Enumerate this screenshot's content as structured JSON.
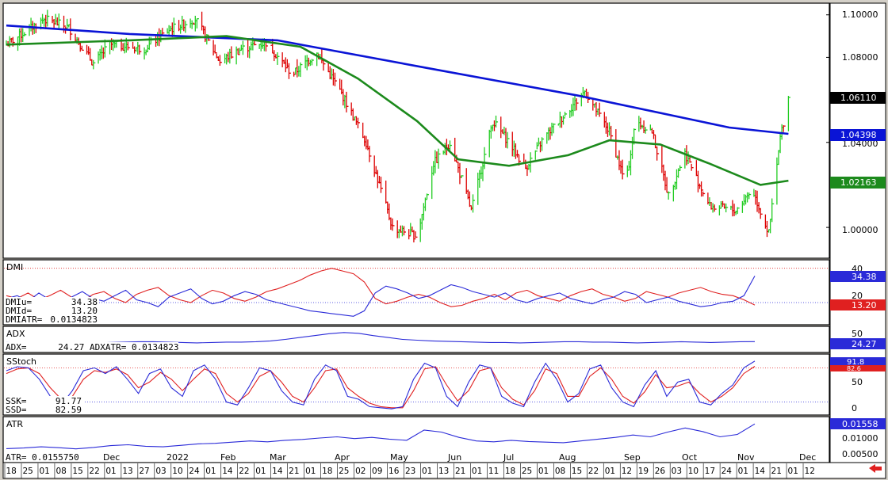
{
  "colors": {
    "up": "#22cc22",
    "down": "#dd0000",
    "ma_long": "#0a14d6",
    "ma_short": "#1c8a1c",
    "di_plus": "#2a2ad8",
    "di_minus": "#e02020",
    "k_line": "#2a2ad8",
    "d_line": "#e02020",
    "adx": "#2a2ad8",
    "atr": "#2a2ad8",
    "panel_bg": "#ffffff",
    "frame": "#000000"
  },
  "price_panel": {
    "y_ticks": [
      "1.10000",
      "1.08000",
      "1.04000",
      "1.00000"
    ],
    "last_label": "1.06110",
    "ma_long_label": "1.04398",
    "ma_short_label": "1.02163"
  },
  "dmi_panel": {
    "title": "DMI",
    "y_ticks": [
      "40",
      "20"
    ],
    "plus_label": "34.38",
    "minus_label": "13.20",
    "readout": [
      {
        "k": "DMIu=",
        "v": "34.38"
      },
      {
        "k": "DMId=",
        "v": "13.20"
      },
      {
        "k": "DMIATR=",
        "v": "0.0134823"
      }
    ]
  },
  "adx_panel": {
    "title": "ADX",
    "y_ticks": [
      "50"
    ],
    "value_label": "24.27",
    "readout": "ADX=      24.27 ADXATR= 0.0134823"
  },
  "stoch_panel": {
    "title": "SStoch",
    "y_ticks": [
      "50",
      "0"
    ],
    "k_label": "91.8",
    "d_label": "82.6",
    "readout": [
      {
        "k": "SSK=",
        "v": "91.77"
      },
      {
        "k": "SSD=",
        "v": "82.59"
      }
    ]
  },
  "atr_panel": {
    "title": "ATR",
    "y_ticks": [
      "0.01000",
      "0.00500"
    ],
    "value_label": "0.01558",
    "readout": "ATR= 0.0155750"
  },
  "x_axis": {
    "months": [
      "Dec",
      "2022",
      "Feb",
      "Mar",
      "Apr",
      "May",
      "Jun",
      "Jul",
      "Aug",
      "Sep",
      "Oct",
      "Nov",
      "Dec"
    ],
    "days": [
      "18",
      "25",
      "01",
      "08",
      "15",
      "22",
      "01",
      "13",
      "27",
      "03",
      "10",
      "24",
      "01",
      "14",
      "22",
      "01",
      "14",
      "21",
      "01",
      "18",
      "25",
      "02",
      "09",
      "16",
      "23",
      "01",
      "13",
      "21",
      "01",
      "11",
      "18",
      "25",
      "01",
      "08",
      "15",
      "22",
      "01",
      "12",
      "19",
      "26",
      "03",
      "10",
      "17",
      "24",
      "01",
      "14",
      "21",
      "01",
      "12"
    ]
  },
  "chart_data": {
    "type": "line",
    "instrument_panels": [
      "price",
      "DMI",
      "ADX",
      "SStoch",
      "ATR"
    ],
    "x_start": "2021-10-18",
    "x_end": "2022-12-12",
    "price": {
      "ylim": [
        0.987,
        1.104
      ],
      "close_path_points": [
        [
          "2021-10-18",
          1.086
        ],
        [
          "2021-11-10",
          1.098
        ],
        [
          "2021-11-25",
          1.094
        ],
        [
          "2021-12-10",
          1.077
        ],
        [
          "2021-12-20",
          1.086
        ],
        [
          "2022-01-10",
          1.084
        ],
        [
          "2022-01-25",
          1.093
        ],
        [
          "2022-02-10",
          1.098
        ],
        [
          "2022-02-25",
          1.078
        ],
        [
          "2022-03-10",
          1.084
        ],
        [
          "2022-03-25",
          1.087
        ],
        [
          "2022-04-10",
          1.072
        ],
        [
          "2022-04-25",
          1.082
        ],
        [
          "2022-05-10",
          1.063
        ],
        [
          "2022-05-25",
          1.04
        ],
        [
          "2022-06-10",
          1.0
        ],
        [
          "2022-06-25",
          0.996
        ],
        [
          "2022-07-05",
          1.03
        ],
        [
          "2022-07-15",
          1.04
        ],
        [
          "2022-07-28",
          1.008
        ],
        [
          "2022-08-10",
          1.05
        ],
        [
          "2022-08-20",
          1.04
        ],
        [
          "2022-08-30",
          1.028
        ],
        [
          "2022-09-10",
          1.042
        ],
        [
          "2022-09-25",
          1.055
        ],
        [
          "2022-10-05",
          1.064
        ],
        [
          "2022-10-20",
          1.045
        ],
        [
          "2022-10-30",
          1.02
        ],
        [
          "2022-11-05",
          1.05
        ],
        [
          "2022-11-15",
          1.045
        ],
        [
          "2022-11-25",
          1.015
        ],
        [
          "2022-12-05",
          1.035
        ],
        [
          "2022-12-20",
          1.01
        ],
        [
          "2023-01-05",
          1.008
        ],
        [
          "2023-01-15",
          1.018
        ],
        [
          "2023-01-25",
          0.997
        ],
        [
          "2023-02-01",
          1.042
        ],
        [
          "2023-02-06",
          1.061
        ]
      ],
      "ma_long_points": [
        [
          "2021-10-18",
          1.095
        ],
        [
          "2022-01-01",
          1.091
        ],
        [
          "2022-04-01",
          1.088
        ],
        [
          "2022-07-01",
          1.075
        ],
        [
          "2022-10-01",
          1.062
        ],
        [
          "2023-01-01",
          1.047
        ],
        [
          "2023-02-06",
          1.044
        ]
      ],
      "ma_short_points": [
        [
          "2021-10-18",
          1.086
        ],
        [
          "2022-01-01",
          1.088
        ],
        [
          "2022-03-01",
          1.09
        ],
        [
          "2022-04-15",
          1.085
        ],
        [
          "2022-05-20",
          1.07
        ],
        [
          "2022-06-25",
          1.05
        ],
        [
          "2022-07-20",
          1.032
        ],
        [
          "2022-08-20",
          1.029
        ],
        [
          "2022-09-25",
          1.034
        ],
        [
          "2022-10-20",
          1.041
        ],
        [
          "2022-11-20",
          1.039
        ],
        [
          "2022-12-20",
          1.03
        ],
        [
          "2023-01-20",
          1.02
        ],
        [
          "2023-02-06",
          1.022
        ]
      ],
      "last": 1.0611,
      "ma_long_last": 1.04398,
      "ma_short_last": 1.02163
    },
    "dmi": {
      "ylim": [
        0,
        45
      ],
      "plus_series": [
        18,
        20,
        16,
        22,
        17,
        14,
        19,
        23,
        18,
        16,
        20,
        24,
        17,
        15,
        12,
        19,
        22,
        25,
        18,
        14,
        16,
        20,
        23,
        21,
        17,
        15,
        13,
        11,
        9,
        8,
        7,
        6,
        5,
        9,
        22,
        27,
        25,
        22,
        18,
        20,
        24,
        28,
        26,
        23,
        21,
        19,
        22,
        17,
        15,
        18,
        20,
        22,
        18,
        16,
        14,
        17,
        19,
        23,
        21,
        15,
        17,
        19,
        16,
        14,
        12,
        13,
        15,
        16,
        20,
        34.38
      ],
      "minus_series": [
        20,
        18,
        22,
        17,
        20,
        24,
        19,
        16,
        21,
        23,
        18,
        15,
        21,
        24,
        26,
        20,
        17,
        15,
        20,
        24,
        22,
        18,
        16,
        19,
        23,
        25,
        28,
        31,
        35,
        38,
        40,
        38,
        36,
        30,
        18,
        14,
        16,
        19,
        21,
        19,
        15,
        12,
        13,
        16,
        18,
        21,
        17,
        22,
        24,
        20,
        18,
        16,
        20,
        23,
        25,
        21,
        19,
        16,
        18,
        23,
        21,
        19,
        22,
        24,
        26,
        23,
        21,
        20,
        17,
        13.2
      ],
      "plus_last": 34.38,
      "minus_last": 13.2,
      "dmiatr": 0.0134823
    },
    "adx": {
      "ylim": [
        0,
        60
      ],
      "series": [
        22,
        21,
        20,
        20,
        21,
        20,
        20,
        22,
        23,
        24,
        24,
        23,
        22,
        21,
        22,
        23,
        23,
        24,
        26,
        30,
        35,
        40,
        45,
        48,
        46,
        40,
        35,
        30,
        28,
        26,
        25,
        24,
        23,
        22,
        22,
        21,
        22,
        23,
        24,
        24,
        23,
        23,
        22,
        21,
        22,
        23,
        24,
        23,
        22,
        23,
        24,
        24.27
      ],
      "last": 24.27,
      "adxatr": 0.0134823
    },
    "sstoch": {
      "ylim": [
        0,
        100
      ],
      "k_series": [
        75,
        82,
        80,
        60,
        30,
        15,
        40,
        75,
        80,
        70,
        82,
        60,
        35,
        70,
        78,
        45,
        30,
        75,
        85,
        60,
        20,
        15,
        45,
        80,
        75,
        40,
        20,
        15,
        60,
        85,
        75,
        30,
        25,
        12,
        10,
        8,
        12,
        60,
        88,
        80,
        30,
        12,
        55,
        85,
        80,
        30,
        18,
        12,
        55,
        88,
        60,
        20,
        35,
        78,
        85,
        45,
        20,
        12,
        50,
        75,
        30,
        55,
        60,
        20,
        15,
        35,
        50,
        80,
        91.77
      ],
      "d_series": [
        70,
        78,
        80,
        70,
        45,
        25,
        30,
        60,
        75,
        72,
        78,
        68,
        45,
        55,
        72,
        60,
        40,
        60,
        78,
        70,
        35,
        20,
        35,
        65,
        75,
        55,
        30,
        20,
        45,
        75,
        78,
        45,
        30,
        18,
        12,
        10,
        10,
        40,
        78,
        82,
        50,
        22,
        40,
        75,
        80,
        45,
        25,
        15,
        40,
        78,
        70,
        30,
        30,
        65,
        80,
        60,
        30,
        18,
        38,
        68,
        45,
        48,
        55,
        35,
        20,
        30,
        45,
        70,
        82.59
      ],
      "k_last": 91.77,
      "d_last": 82.59
    },
    "atr": {
      "ylim": [
        0.003,
        0.0175
      ],
      "series": [
        0.0072,
        0.0074,
        0.0078,
        0.0075,
        0.0071,
        0.0076,
        0.0082,
        0.0085,
        0.008,
        0.0078,
        0.0083,
        0.0088,
        0.009,
        0.0094,
        0.0098,
        0.0095,
        0.01,
        0.0103,
        0.0108,
        0.0112,
        0.0106,
        0.011,
        0.0104,
        0.01,
        0.0135,
        0.0128,
        0.011,
        0.0098,
        0.0095,
        0.01,
        0.0096,
        0.0094,
        0.0092,
        0.0098,
        0.0104,
        0.011,
        0.0118,
        0.0112,
        0.0128,
        0.0142,
        0.013,
        0.0112,
        0.012,
        0.015575
      ],
      "last": 0.015575
    }
  }
}
